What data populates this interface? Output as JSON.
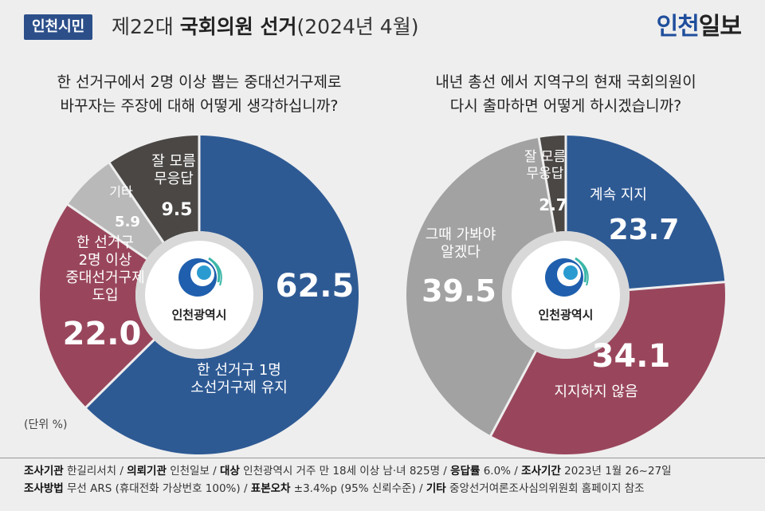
{
  "header": {
    "badge": "인천시민",
    "title_prefix": "제22대 ",
    "title_bold": "국회의원 선거",
    "title_suffix": "(2024년 4월)",
    "logo_main": "인천",
    "logo_sub": "일보"
  },
  "unit_note": "(단위 %)",
  "center_logo_text": "인천광역시",
  "chart_data": [
    {
      "type": "pie",
      "question_lines": [
        "한 선거구에서 2명 이상 뽑는 중대선거구제로",
        "바꾸자는 주장에 대해 어떻게 생각하십니까?"
      ],
      "slices": [
        {
          "label_lines": [
            "한 선거구 1명",
            "소선거구제 유지"
          ],
          "value": 62.5,
          "display": "62.5",
          "color": "#2e5a94"
        },
        {
          "label_lines": [
            "한 선거구",
            "2명 이상",
            "중대선거구제",
            "도입"
          ],
          "value": 22.0,
          "display": "22.0",
          "color": "#99465c"
        },
        {
          "label_lines": [
            "기타"
          ],
          "value": 5.9,
          "display": "5.9",
          "color": "#b9b9b9"
        },
        {
          "label_lines": [
            "잘 모름",
            "무응답"
          ],
          "value": 9.5,
          "display": "9.5",
          "color": "#4a4745"
        }
      ]
    },
    {
      "type": "pie",
      "question_lines": [
        "내년 총선 에서 지역구의 현재 국회의원이",
        "다시 출마하면 어떻게 하시겠습니까?"
      ],
      "slices": [
        {
          "label_lines": [
            "계속 지지"
          ],
          "value": 23.7,
          "display": "23.7",
          "color": "#2e5a94"
        },
        {
          "label_lines": [
            "지지하지 않음"
          ],
          "value": 34.1,
          "display": "34.1",
          "color": "#99465c"
        },
        {
          "label_lines": [
            "그때 가봐야",
            "알겠다"
          ],
          "value": 39.5,
          "display": "39.5",
          "color": "#a2a2a2"
        },
        {
          "label_lines": [
            "잘 모름",
            "무응답"
          ],
          "value": 2.7,
          "display": "2.7",
          "color": "#4a4745"
        }
      ]
    }
  ],
  "footer": {
    "line1": [
      {
        "k": "조사기관",
        "v": " 한길리서치 / "
      },
      {
        "k": "의뢰기관",
        "v": " 인천일보 / "
      },
      {
        "k": "대상",
        "v": " 인천광역시 거주 만 18세 이상 남·녀 825명 / "
      },
      {
        "k": "응답률",
        "v": " 6.0% / "
      },
      {
        "k": "조사기간",
        "v": " 2023년 1월 26~27일"
      }
    ],
    "line2": [
      {
        "k": "조사방법",
        "v": " 무선 ARS (휴대전화 가상번호 100%) / "
      },
      {
        "k": "표본오차",
        "v": " ±3.4%p (95% 신뢰수준) / "
      },
      {
        "k": "기타",
        "v": " 중앙선거여론조사심의위원회 홈페이지 참조"
      }
    ]
  }
}
